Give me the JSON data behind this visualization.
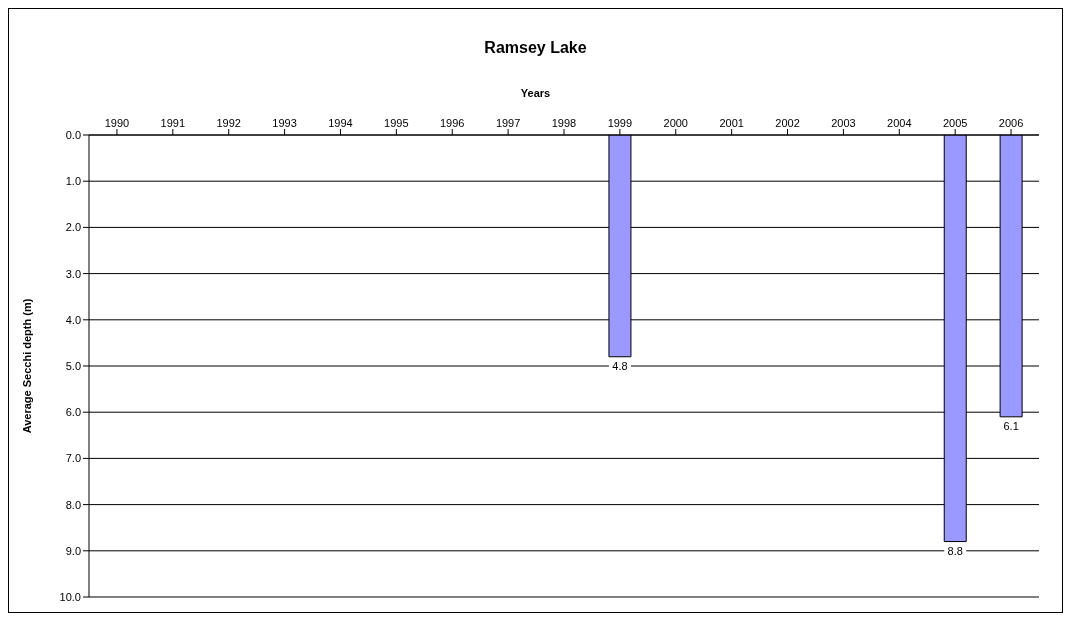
{
  "chart_data": {
    "type": "bar",
    "title": "Ramsey Lake",
    "xlabel": "Years",
    "ylabel": "Average Secchi depth (m)",
    "categories": [
      "1990",
      "1991",
      "1992",
      "1993",
      "1994",
      "1995",
      "1996",
      "1997",
      "1998",
      "1999",
      "2000",
      "2001",
      "2002",
      "2003",
      "2004",
      "2005",
      "2006"
    ],
    "values": [
      null,
      null,
      null,
      null,
      null,
      null,
      null,
      null,
      null,
      4.8,
      null,
      null,
      null,
      null,
      null,
      8.8,
      6.1
    ],
    "color": "#9999ff",
    "ylim": [
      10,
      0
    ],
    "yticks": [
      {
        "value": 0,
        "label": "0.0"
      },
      {
        "value": 1,
        "label": "1.0"
      },
      {
        "value": 2,
        "label": "2.0"
      },
      {
        "value": 3,
        "label": "3.0"
      },
      {
        "value": 4,
        "label": "4.0"
      },
      {
        "value": 5,
        "label": "5.0"
      },
      {
        "value": 6,
        "label": "6.0"
      },
      {
        "value": 7,
        "label": "7.0"
      },
      {
        "value": 8,
        "label": "8.0"
      },
      {
        "value": 9,
        "label": "9.0"
      },
      {
        "value": 10,
        "label": "10.0"
      }
    ],
    "grid": "y",
    "data_labels": true
  }
}
